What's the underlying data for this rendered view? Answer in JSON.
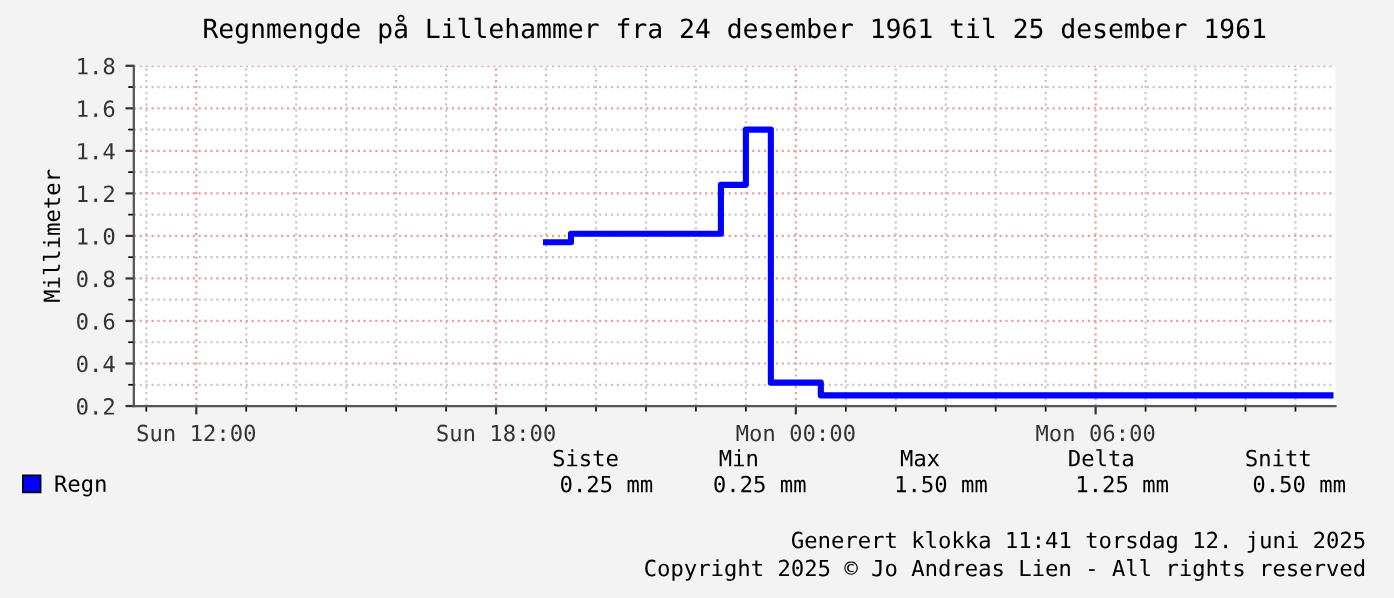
{
  "chart_data": {
    "type": "step",
    "title": "Regnmengde på Lillehammer fra 24 desember 1961 til 25 desember 1961",
    "ylabel": "Millimeter",
    "x": [
      "1961-12-24T19:00",
      "1961-12-24T19:30",
      "1961-12-24T22:30",
      "1961-12-24T23:00",
      "1961-12-24T23:30",
      "1961-12-25T00:30",
      "1961-12-25T10:42"
    ],
    "series": [
      {
        "name": "Regn",
        "color": "#0000ff",
        "values": [
          0.97,
          1.01,
          1.24,
          1.5,
          0.31,
          0.25,
          0.25
        ]
      }
    ],
    "xlim": [
      "1961-12-24T10:45",
      "1961-12-25T10:48"
    ],
    "xticks": [
      {
        "value": "1961-12-24T12:00",
        "label": "Sun 12:00"
      },
      {
        "value": "1961-12-24T18:00",
        "label": "Sun 18:00"
      },
      {
        "value": "1961-12-25T00:00",
        "label": "Mon 00:00"
      },
      {
        "value": "1961-12-25T06:00",
        "label": "Mon 06:00"
      }
    ],
    "ylim": [
      0.2,
      1.8
    ],
    "yticks": [
      0.2,
      0.4,
      0.6,
      0.8,
      {
        "value": 1,
        "label": "1.0"
      },
      1.2,
      1.4,
      1.6,
      1.8
    ],
    "grid": true,
    "legend": "bottom left",
    "annotations": [
      "Siste",
      "Min",
      "Max",
      "Delta",
      "Snitt",
      "0.25 mm",
      "0.25 mm",
      "1.50 mm",
      "1.25 mm",
      "0.50 mm",
      "Generert klokka 11:41 torsdag 12. juni 2025",
      "Copyright 2025 © Jo Andreas Lien - All rights reserved"
    ]
  }
}
